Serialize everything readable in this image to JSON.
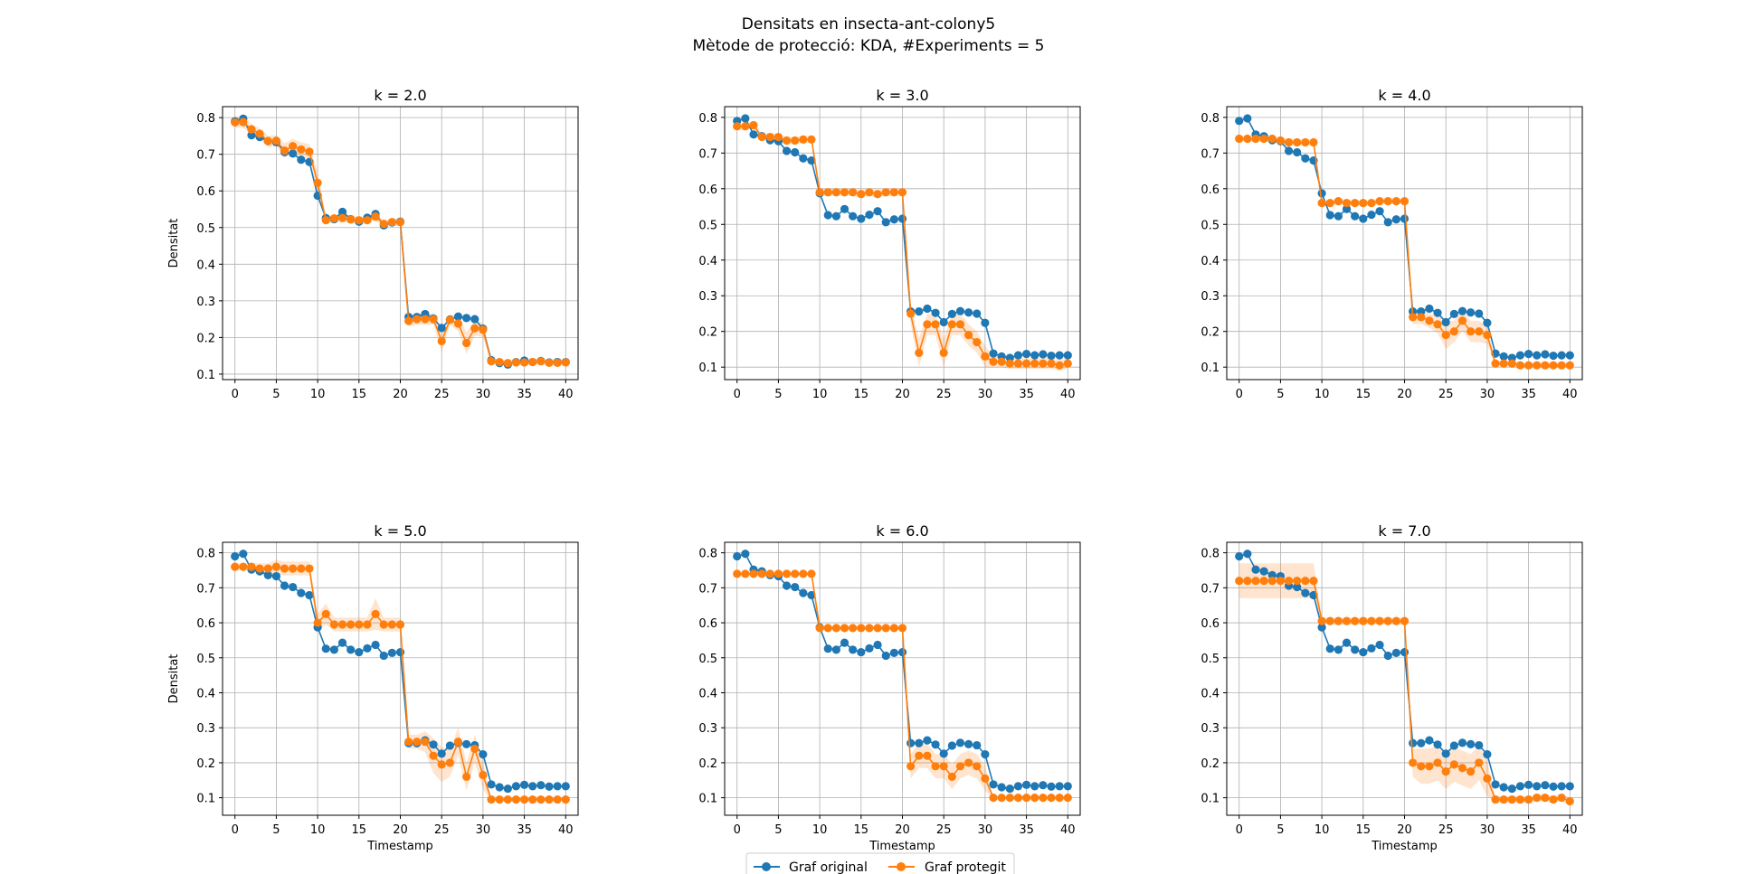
{
  "figure": {
    "title_line1": "Densitats en insecta-ant-colony5",
    "title_line2": "Mètode de protecció: KDA, #Experiments = 5"
  },
  "legend": {
    "items": [
      {
        "label": "Graf original",
        "color": "#1f77b4"
      },
      {
        "label": "Graf protegit",
        "color": "#ff7f0e"
      }
    ]
  },
  "chart_data": [
    {
      "type": "line",
      "title": "k = 2.0",
      "xlabel": "",
      "ylabel": "Densitat",
      "xlim": [
        -1.5,
        41.5
      ],
      "ylim": [
        0.085,
        0.83
      ],
      "xticks": [
        0,
        5,
        10,
        15,
        20,
        25,
        30,
        35,
        40
      ],
      "yticks": [
        0.1,
        0.2,
        0.3,
        0.4,
        0.5,
        0.6,
        0.7,
        0.8
      ],
      "grid": true,
      "series": [
        {
          "name": "Graf original",
          "color": "#1f77b4",
          "values": [
            0.79,
            0.797,
            0.752,
            0.747,
            0.736,
            0.733,
            0.706,
            0.702,
            0.685,
            0.679,
            0.587,
            0.526,
            0.523,
            0.543,
            0.523,
            0.516,
            0.527,
            0.537,
            0.506,
            0.514,
            0.516,
            0.256,
            0.256,
            0.264,
            0.252,
            0.226,
            0.249,
            0.257,
            0.253,
            0.25,
            0.224,
            0.138,
            0.13,
            0.126,
            0.133,
            0.137,
            0.133,
            0.136,
            0.132,
            0.133,
            0.133
          ]
        },
        {
          "name": "Graf protegit",
          "color": "#ff7f0e",
          "values": [
            0.787,
            0.788,
            0.768,
            0.756,
            0.736,
            0.737,
            0.71,
            0.722,
            0.713,
            0.707,
            0.622,
            0.52,
            0.525,
            0.526,
            0.522,
            0.52,
            0.52,
            0.53,
            0.51,
            0.515,
            0.515,
            0.245,
            0.25,
            0.25,
            0.25,
            0.19,
            0.248,
            0.238,
            0.185,
            0.225,
            0.221,
            0.135,
            0.133,
            0.13,
            0.132,
            0.132,
            0.133,
            0.135,
            0.131,
            0.131,
            0.132
          ],
          "band": [
            0.015,
            0.015,
            0.015,
            0.015,
            0.015,
            0.015,
            0.02,
            0.02,
            0.02,
            0.02,
            0.03,
            0.01,
            0.01,
            0.01,
            0.01,
            0.01,
            0.01,
            0.01,
            0.01,
            0.01,
            0.01,
            0.015,
            0.015,
            0.015,
            0.015,
            0.03,
            0.015,
            0.02,
            0.03,
            0.02,
            0.02,
            0.008,
            0.008,
            0.008,
            0.008,
            0.008,
            0.008,
            0.008,
            0.008,
            0.008,
            0.008
          ]
        }
      ]
    },
    {
      "type": "line",
      "title": "k = 3.0",
      "xlabel": "",
      "ylabel": "",
      "xlim": [
        -1.5,
        41.5
      ],
      "ylim": [
        0.065,
        0.83
      ],
      "xticks": [
        0,
        5,
        10,
        15,
        20,
        25,
        30,
        35,
        40
      ],
      "yticks": [
        0.1,
        0.2,
        0.3,
        0.4,
        0.5,
        0.6,
        0.7,
        0.8
      ],
      "grid": true,
      "series": [
        {
          "name": "Graf original",
          "color": "#1f77b4",
          "values": [
            0.79,
            0.797,
            0.752,
            0.747,
            0.736,
            0.733,
            0.706,
            0.702,
            0.685,
            0.679,
            0.587,
            0.526,
            0.523,
            0.543,
            0.523,
            0.516,
            0.527,
            0.537,
            0.506,
            0.514,
            0.516,
            0.256,
            0.256,
            0.264,
            0.252,
            0.226,
            0.249,
            0.257,
            0.253,
            0.25,
            0.224,
            0.138,
            0.13,
            0.126,
            0.133,
            0.137,
            0.133,
            0.136,
            0.132,
            0.133,
            0.133
          ]
        },
        {
          "name": "Graf protegit",
          "color": "#ff7f0e",
          "values": [
            0.775,
            0.775,
            0.778,
            0.745,
            0.745,
            0.745,
            0.735,
            0.735,
            0.738,
            0.738,
            0.59,
            0.59,
            0.59,
            0.59,
            0.59,
            0.585,
            0.59,
            0.585,
            0.59,
            0.59,
            0.59,
            0.25,
            0.14,
            0.22,
            0.22,
            0.14,
            0.22,
            0.22,
            0.19,
            0.17,
            0.13,
            0.115,
            0.115,
            0.11,
            0.11,
            0.11,
            0.11,
            0.11,
            0.11,
            0.105,
            0.11
          ],
          "band": [
            0.01,
            0.01,
            0.01,
            0.01,
            0.01,
            0.01,
            0.01,
            0.01,
            0.01,
            0.01,
            0.01,
            0.01,
            0.01,
            0.01,
            0.01,
            0.01,
            0.01,
            0.01,
            0.01,
            0.01,
            0.01,
            0.03,
            0.04,
            0.03,
            0.03,
            0.04,
            0.03,
            0.03,
            0.03,
            0.03,
            0.03,
            0.015,
            0.015,
            0.015,
            0.015,
            0.015,
            0.015,
            0.015,
            0.015,
            0.015,
            0.015
          ]
        }
      ]
    },
    {
      "type": "line",
      "title": "k = 4.0",
      "xlabel": "",
      "ylabel": "",
      "xlim": [
        -1.5,
        41.5
      ],
      "ylim": [
        0.065,
        0.83
      ],
      "xticks": [
        0,
        5,
        10,
        15,
        20,
        25,
        30,
        35,
        40
      ],
      "yticks": [
        0.1,
        0.2,
        0.3,
        0.4,
        0.5,
        0.6,
        0.7,
        0.8
      ],
      "grid": true,
      "series": [
        {
          "name": "Graf original",
          "color": "#1f77b4",
          "values": [
            0.79,
            0.797,
            0.752,
            0.747,
            0.736,
            0.733,
            0.706,
            0.702,
            0.685,
            0.679,
            0.587,
            0.526,
            0.523,
            0.543,
            0.523,
            0.516,
            0.527,
            0.537,
            0.506,
            0.514,
            0.516,
            0.256,
            0.256,
            0.264,
            0.252,
            0.226,
            0.249,
            0.257,
            0.253,
            0.25,
            0.224,
            0.138,
            0.13,
            0.126,
            0.133,
            0.137,
            0.133,
            0.136,
            0.132,
            0.133,
            0.133
          ]
        },
        {
          "name": "Graf protegit",
          "color": "#ff7f0e",
          "values": [
            0.74,
            0.74,
            0.74,
            0.74,
            0.74,
            0.735,
            0.73,
            0.73,
            0.73,
            0.73,
            0.56,
            0.56,
            0.565,
            0.56,
            0.56,
            0.56,
            0.56,
            0.565,
            0.565,
            0.565,
            0.565,
            0.24,
            0.24,
            0.23,
            0.22,
            0.19,
            0.2,
            0.23,
            0.2,
            0.2,
            0.19,
            0.11,
            0.11,
            0.11,
            0.105,
            0.105,
            0.105,
            0.105,
            0.105,
            0.105,
            0.105
          ],
          "band": [
            0.008,
            0.008,
            0.008,
            0.008,
            0.008,
            0.008,
            0.008,
            0.008,
            0.008,
            0.008,
            0.008,
            0.008,
            0.008,
            0.008,
            0.008,
            0.008,
            0.008,
            0.008,
            0.008,
            0.008,
            0.008,
            0.02,
            0.02,
            0.02,
            0.025,
            0.04,
            0.03,
            0.03,
            0.03,
            0.03,
            0.025,
            0.008,
            0.008,
            0.008,
            0.008,
            0.008,
            0.008,
            0.008,
            0.008,
            0.008,
            0.008
          ]
        }
      ]
    },
    {
      "type": "line",
      "title": "k = 5.0",
      "xlabel": "Timestamp",
      "ylabel": "Densitat",
      "xlim": [
        -1.5,
        41.5
      ],
      "ylim": [
        0.05,
        0.83
      ],
      "xticks": [
        0,
        5,
        10,
        15,
        20,
        25,
        30,
        35,
        40
      ],
      "yticks": [
        0.1,
        0.2,
        0.3,
        0.4,
        0.5,
        0.6,
        0.7,
        0.8
      ],
      "grid": true,
      "series": [
        {
          "name": "Graf original",
          "color": "#1f77b4",
          "values": [
            0.79,
            0.797,
            0.752,
            0.747,
            0.736,
            0.733,
            0.706,
            0.702,
            0.685,
            0.679,
            0.587,
            0.526,
            0.523,
            0.543,
            0.523,
            0.516,
            0.527,
            0.537,
            0.506,
            0.514,
            0.516,
            0.256,
            0.256,
            0.264,
            0.252,
            0.226,
            0.249,
            0.257,
            0.253,
            0.25,
            0.224,
            0.138,
            0.13,
            0.126,
            0.133,
            0.137,
            0.133,
            0.136,
            0.132,
            0.133,
            0.133
          ]
        },
        {
          "name": "Graf protegit",
          "color": "#ff7f0e",
          "values": [
            0.76,
            0.76,
            0.76,
            0.755,
            0.755,
            0.76,
            0.755,
            0.755,
            0.755,
            0.755,
            0.6,
            0.625,
            0.595,
            0.595,
            0.595,
            0.595,
            0.595,
            0.625,
            0.595,
            0.595,
            0.595,
            0.26,
            0.26,
            0.26,
            0.22,
            0.195,
            0.2,
            0.26,
            0.16,
            0.24,
            0.165,
            0.095,
            0.095,
            0.095,
            0.095,
            0.095,
            0.095,
            0.095,
            0.095,
            0.095,
            0.095
          ],
          "band": [
            0.01,
            0.01,
            0.01,
            0.015,
            0.015,
            0.02,
            0.02,
            0.02,
            0.02,
            0.02,
            0.025,
            0.03,
            0.02,
            0.02,
            0.02,
            0.02,
            0.02,
            0.045,
            0.02,
            0.02,
            0.02,
            0.02,
            0.02,
            0.03,
            0.05,
            0.05,
            0.04,
            0.04,
            0.04,
            0.04,
            0.04,
            0.005,
            0.005,
            0.005,
            0.005,
            0.005,
            0.005,
            0.005,
            0.005,
            0.005,
            0.005
          ]
        }
      ]
    },
    {
      "type": "line",
      "title": "k = 6.0",
      "xlabel": "Timestamp",
      "ylabel": "",
      "xlim": [
        -1.5,
        41.5
      ],
      "ylim": [
        0.05,
        0.83
      ],
      "xticks": [
        0,
        5,
        10,
        15,
        20,
        25,
        30,
        35,
        40
      ],
      "yticks": [
        0.1,
        0.2,
        0.3,
        0.4,
        0.5,
        0.6,
        0.7,
        0.8
      ],
      "grid": true,
      "series": [
        {
          "name": "Graf original",
          "color": "#1f77b4",
          "values": [
            0.79,
            0.797,
            0.752,
            0.747,
            0.736,
            0.733,
            0.706,
            0.702,
            0.685,
            0.679,
            0.587,
            0.526,
            0.523,
            0.543,
            0.523,
            0.516,
            0.527,
            0.537,
            0.506,
            0.514,
            0.516,
            0.256,
            0.256,
            0.264,
            0.252,
            0.226,
            0.249,
            0.257,
            0.253,
            0.25,
            0.224,
            0.138,
            0.13,
            0.126,
            0.133,
            0.137,
            0.133,
            0.136,
            0.132,
            0.133,
            0.133
          ]
        },
        {
          "name": "Graf protegit",
          "color": "#ff7f0e",
          "values": [
            0.74,
            0.74,
            0.74,
            0.74,
            0.74,
            0.74,
            0.74,
            0.74,
            0.74,
            0.74,
            0.585,
            0.585,
            0.585,
            0.585,
            0.585,
            0.585,
            0.585,
            0.585,
            0.585,
            0.585,
            0.585,
            0.19,
            0.22,
            0.22,
            0.19,
            0.19,
            0.16,
            0.19,
            0.2,
            0.19,
            0.155,
            0.1,
            0.1,
            0.1,
            0.1,
            0.1,
            0.1,
            0.1,
            0.1,
            0.1,
            0.1
          ],
          "band": [
            0.006,
            0.006,
            0.006,
            0.006,
            0.006,
            0.006,
            0.006,
            0.006,
            0.006,
            0.006,
            0.006,
            0.006,
            0.006,
            0.006,
            0.006,
            0.006,
            0.006,
            0.006,
            0.006,
            0.006,
            0.006,
            0.035,
            0.035,
            0.035,
            0.035,
            0.035,
            0.035,
            0.035,
            0.035,
            0.035,
            0.035,
            0.005,
            0.005,
            0.005,
            0.005,
            0.005,
            0.005,
            0.005,
            0.005,
            0.005,
            0.005
          ]
        }
      ]
    },
    {
      "type": "line",
      "title": "k = 7.0",
      "xlabel": "Timestamp",
      "ylabel": "",
      "xlim": [
        -1.5,
        41.5
      ],
      "ylim": [
        0.05,
        0.83
      ],
      "xticks": [
        0,
        5,
        10,
        15,
        20,
        25,
        30,
        35,
        40
      ],
      "yticks": [
        0.1,
        0.2,
        0.3,
        0.4,
        0.5,
        0.6,
        0.7,
        0.8
      ],
      "grid": true,
      "series": [
        {
          "name": "Graf original",
          "color": "#1f77b4",
          "values": [
            0.79,
            0.797,
            0.752,
            0.747,
            0.736,
            0.733,
            0.706,
            0.702,
            0.685,
            0.679,
            0.587,
            0.526,
            0.523,
            0.543,
            0.523,
            0.516,
            0.527,
            0.537,
            0.506,
            0.514,
            0.516,
            0.256,
            0.256,
            0.264,
            0.252,
            0.226,
            0.249,
            0.257,
            0.253,
            0.25,
            0.224,
            0.138,
            0.13,
            0.126,
            0.133,
            0.137,
            0.133,
            0.136,
            0.132,
            0.133,
            0.133
          ]
        },
        {
          "name": "Graf protegit",
          "color": "#ff7f0e",
          "values": [
            0.72,
            0.72,
            0.72,
            0.72,
            0.72,
            0.72,
            0.72,
            0.72,
            0.72,
            0.72,
            0.605,
            0.605,
            0.605,
            0.605,
            0.605,
            0.605,
            0.605,
            0.605,
            0.605,
            0.605,
            0.605,
            0.2,
            0.19,
            0.19,
            0.2,
            0.175,
            0.195,
            0.185,
            0.175,
            0.2,
            0.155,
            0.095,
            0.095,
            0.095,
            0.095,
            0.095,
            0.1,
            0.1,
            0.095,
            0.1,
            0.09
          ],
          "band": [
            0.05,
            0.05,
            0.05,
            0.05,
            0.05,
            0.05,
            0.05,
            0.05,
            0.05,
            0.05,
            0.01,
            0.01,
            0.01,
            0.01,
            0.01,
            0.01,
            0.01,
            0.01,
            0.01,
            0.01,
            0.01,
            0.04,
            0.05,
            0.05,
            0.05,
            0.05,
            0.05,
            0.05,
            0.05,
            0.05,
            0.05,
            0.01,
            0.01,
            0.01,
            0.01,
            0.01,
            0.01,
            0.01,
            0.01,
            0.01,
            0.01
          ]
        }
      ]
    }
  ]
}
